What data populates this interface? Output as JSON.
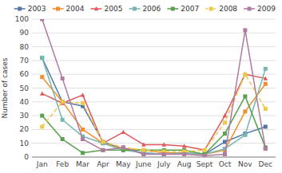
{
  "chart_data": {
    "type": "line",
    "categories": [
      "Jan",
      "Feb",
      "Mar",
      "Apr",
      "May",
      "June",
      "July",
      "Aug",
      "Sept",
      "Oct",
      "Nov",
      "Dec"
    ],
    "series": [
      {
        "name": "2003",
        "values": [
          72,
          40,
          37,
          11,
          6,
          3,
          2,
          3,
          2,
          11,
          17,
          22
        ],
        "marker": "square",
        "line_style": "solid"
      },
      {
        "name": "2004",
        "values": [
          58,
          40,
          20,
          10,
          6,
          5,
          3,
          3,
          2,
          5,
          33,
          53
        ],
        "marker": "square",
        "line_style": "solid"
      },
      {
        "name": "2005",
        "values": [
          46,
          39,
          45,
          10,
          18,
          9,
          9,
          8,
          5,
          30,
          60,
          57
        ],
        "marker": "triangle",
        "line_style": "solid"
      },
      {
        "name": "2006",
        "values": [
          72,
          27,
          15,
          10,
          5,
          3,
          2,
          3,
          2,
          6,
          16,
          64
        ],
        "marker": "square",
        "line_style": "solid"
      },
      {
        "name": "2007",
        "values": [
          30,
          13,
          3,
          5,
          5,
          5,
          5,
          5,
          2,
          17,
          44,
          7
        ],
        "marker": "square",
        "line_style": "solid"
      },
      {
        "name": "2008",
        "values": [
          22,
          40,
          39,
          11,
          7,
          5,
          4,
          4,
          5,
          25,
          60,
          35
        ],
        "marker": "square",
        "line_style": "dashed"
      },
      {
        "name": "2009",
        "values": [
          100,
          57,
          13,
          5,
          7,
          2,
          2,
          2,
          1,
          2,
          92,
          6
        ],
        "marker": "square",
        "line_style": "solid"
      }
    ],
    "ylabel": "Number of cases",
    "ylim": [
      0,
      100
    ],
    "yticks": [
      0,
      10,
      20,
      30,
      40,
      50,
      60,
      70,
      80,
      90,
      100
    ],
    "grid": true,
    "legend": "top"
  }
}
